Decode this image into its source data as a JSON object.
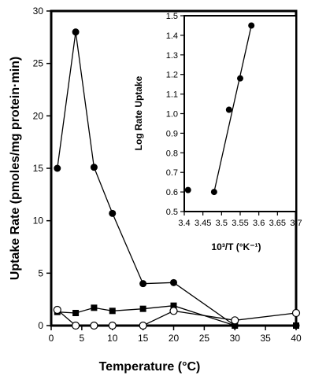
{
  "chart_data": [
    {
      "type": "line",
      "xlabel": "Temperature (°C)",
      "ylabel": "Uptake Rate (pmoles/mg protein·min)",
      "xlim": [
        0,
        40
      ],
      "ylim": [
        0,
        30
      ],
      "xticks": [
        "0",
        "5",
        "10",
        "15",
        "20",
        "25",
        "30",
        "35",
        "40"
      ],
      "yticks": [
        "0",
        "5",
        "10",
        "15",
        "20",
        "25",
        "30"
      ],
      "series": [
        {
          "marker": "filled-circle",
          "points": [
            [
              1,
              15
            ],
            [
              4,
              28
            ],
            [
              7,
              15.1
            ],
            [
              10,
              10.7
            ],
            [
              15,
              4
            ],
            [
              20,
              4.1
            ],
            [
              30,
              0
            ],
            [
              40,
              0
            ]
          ]
        },
        {
          "marker": "filled-square",
          "points": [
            [
              1,
              1.3
            ],
            [
              4,
              1.2
            ],
            [
              7,
              1.7
            ],
            [
              10,
              1.4
            ],
            [
              15,
              1.6
            ],
            [
              20,
              1.9
            ],
            [
              30,
              0
            ],
            [
              40,
              0
            ]
          ]
        },
        {
          "marker": "open-circle",
          "points": [
            [
              1,
              1.5
            ],
            [
              4,
              0
            ],
            [
              7,
              0
            ],
            [
              10,
              0
            ],
            [
              15,
              0
            ],
            [
              20,
              1.4
            ],
            [
              30,
              0.5
            ],
            [
              40,
              1.2
            ]
          ]
        }
      ]
    },
    {
      "type": "scatter",
      "xlabel": "10³/T (°K⁻¹)",
      "ylabel": "Log Rate Uptake",
      "xlim": [
        3.4,
        3.7
      ],
      "ylim": [
        0.5,
        1.5
      ],
      "xticks": [
        "3.4",
        "3.45",
        "3.5",
        "3.55",
        "3.6",
        "3.65",
        "3.7"
      ],
      "yticks": [
        "0.5",
        "0.6",
        "0.7",
        "0.8",
        "0.9",
        "1.0",
        "1.1",
        "1.2",
        "1.3",
        "1.4",
        "1.5"
      ],
      "points": [
        [
          3.41,
          0.61
        ],
        [
          3.48,
          0.6
        ],
        [
          3.52,
          1.02
        ],
        [
          3.55,
          1.18
        ],
        [
          3.58,
          1.45
        ]
      ],
      "fit_line": [
        [
          3.48,
          0.6
        ],
        [
          3.58,
          1.45
        ]
      ]
    }
  ]
}
